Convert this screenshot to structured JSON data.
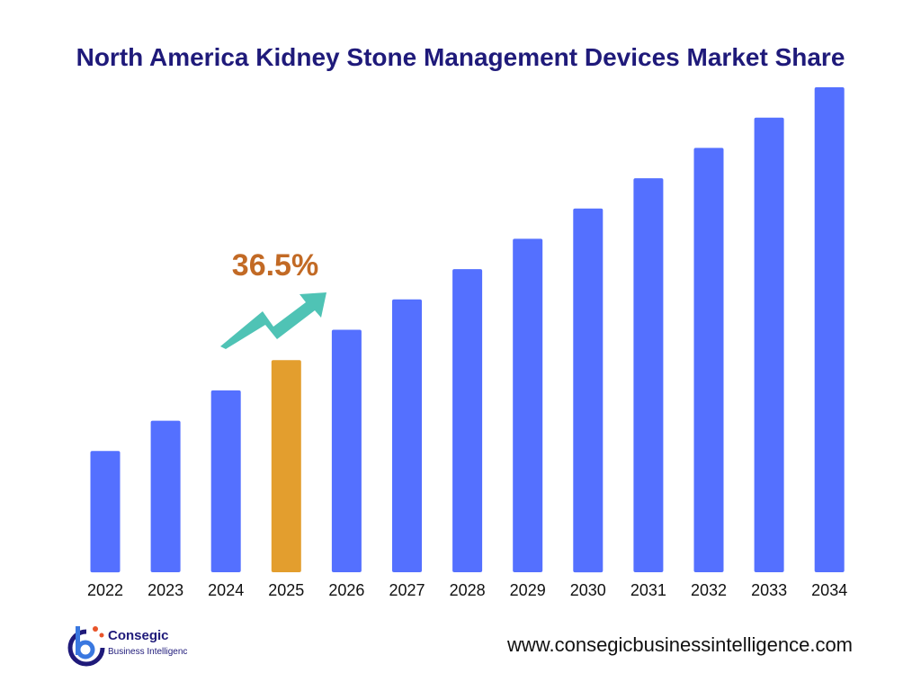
{
  "title": "North America Kidney Stone Management Devices Market Share",
  "colors": {
    "bar": "#5470ff",
    "highlight_bar": "#e39e2e",
    "arrow": "#4fc3b5",
    "growth_label": "#c26a25",
    "title": "#1f1a7a"
  },
  "chart_data": {
    "type": "bar",
    "title": "North America Kidney Stone Management Devices Market Share",
    "xlabel": "",
    "ylabel": "",
    "categories": [
      "2022",
      "2023",
      "2024",
      "2025",
      "2026",
      "2027",
      "2028",
      "2029",
      "2030",
      "2031",
      "2032",
      "2033",
      "2034"
    ],
    "values": [
      4,
      5,
      6,
      7,
      8,
      9,
      10,
      11,
      12,
      13,
      14,
      15,
      16
    ],
    "highlight_category": "2025",
    "ylim": [
      0,
      16
    ],
    "grid": false,
    "legend": "none",
    "annotation": {
      "text": "36.5%",
      "icon": "trending-up-arrow-icon"
    }
  },
  "footer": {
    "logo_name": "Consegic",
    "logo_subtitle": "Business Intelligenc",
    "logo_icon": "consegic-logo-icon",
    "website": "www.consegicbusinessintelligence.com"
  }
}
